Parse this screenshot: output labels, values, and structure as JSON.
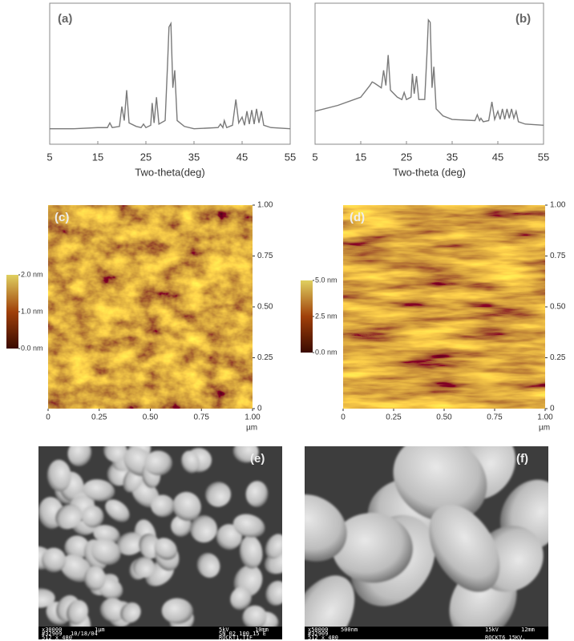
{
  "chart_data": [
    {
      "type": "line",
      "panel_label": "(a)",
      "x_label": "Two-theta(deg)",
      "x": [
        5,
        10,
        15,
        17,
        17.5,
        18,
        19.5,
        20,
        20.5,
        21,
        21.5,
        23,
        24,
        24.5,
        25,
        26,
        26.3,
        26.7,
        27.2,
        27.7,
        29,
        29.5,
        29.8,
        30.2,
        30.6,
        31,
        31.5,
        33,
        35,
        40,
        40.5,
        41,
        41.3,
        41.8,
        43,
        43.7,
        44.3,
        45,
        45.5,
        46,
        46.5,
        47,
        47.5,
        48,
        48.5,
        49,
        49.5,
        51,
        55
      ],
      "series": [
        {
          "color": "#7a7a7a",
          "values": [
            5,
            5,
            6,
            6,
            10,
            6,
            7,
            24,
            12,
            38,
            10,
            7,
            6,
            9,
            6,
            8,
            27,
            10,
            32,
            9,
            12,
            60,
            92,
            95,
            40,
            55,
            12,
            7,
            5,
            6,
            9,
            6,
            12,
            6,
            8,
            30,
            10,
            15,
            8,
            20,
            9,
            21,
            9,
            22,
            10,
            20,
            8,
            6,
            5
          ]
        }
      ],
      "xlim": [
        5,
        55
      ],
      "xticks": [
        5,
        15,
        25,
        35,
        45,
        55
      ],
      "ylim": [
        0,
        100
      ]
    },
    {
      "type": "line",
      "panel_label": "(b)",
      "x_label": "Two-theta (deg)",
      "x": [
        5,
        10,
        15,
        17,
        17.5,
        18,
        19.5,
        20,
        20.5,
        21,
        21.5,
        23,
        24,
        24.5,
        25,
        26,
        26.3,
        26.7,
        27.2,
        27.7,
        29,
        29.5,
        29.8,
        30.2,
        30.6,
        31,
        31.5,
        33,
        35,
        40,
        40.5,
        41,
        41.3,
        41.8,
        43,
        43.7,
        44.3,
        45,
        45.5,
        46,
        46.5,
        47,
        47.5,
        48,
        48.5,
        49,
        49.5,
        51,
        55
      ],
      "series": [
        {
          "color": "#7a7a7a",
          "values": [
            20,
            25,
            32,
            42,
            45,
            44,
            40,
            55,
            42,
            68,
            38,
            32,
            30,
            36,
            30,
            32,
            52,
            35,
            50,
            30,
            30,
            70,
            98,
            96,
            40,
            58,
            22,
            16,
            13,
            12,
            17,
            12,
            14,
            11,
            12,
            28,
            13,
            20,
            13,
            22,
            13,
            22,
            14,
            22,
            14,
            20,
            11,
            9,
            8
          ]
        }
      ],
      "xlim": [
        5,
        55
      ],
      "xticks": [
        5,
        15,
        25,
        35,
        45,
        55
      ],
      "ylim": [
        0,
        100
      ]
    }
  ],
  "afm_panels": [
    {
      "panel_label": "(c)",
      "unit": "µm",
      "lim": [
        0,
        1
      ],
      "ticks": [
        0,
        0.25,
        {
          "value": 0.5,
          "label": "0.50"
        },
        0.75,
        {
          "value": 1,
          "label": "1.00"
        }
      ],
      "colorbar": {
        "lim": [
          0,
          2
        ],
        "ticks": [
          {
            "value": 0,
            "label": "0.0 nm"
          },
          {
            "value": 1,
            "label": "1.0 nm"
          },
          {
            "value": 2,
            "label": "2.0 nm"
          }
        ]
      }
    },
    {
      "panel_label": "(d)",
      "unit": "µm",
      "lim": [
        0,
        1
      ],
      "ticks": [
        0,
        0.25,
        {
          "value": 0.5,
          "label": "0.50"
        },
        0.75,
        {
          "value": 1,
          "label": "1.00"
        }
      ],
      "colorbar": {
        "lim": [
          0,
          5
        ],
        "ticks": [
          {
            "value": 0,
            "label": "0.0 nm"
          },
          {
            "value": 2.5,
            "label": "2.5 nm"
          },
          {
            "value": 5,
            "label": "5.0 nm"
          }
        ]
      }
    }
  ],
  "sem_panels": [
    {
      "panel_label": "(e)",
      "info": [
        "x30000",
        "1µm",
        "5kV",
        "10mm",
        "#32909",
        "10/18/04",
        "SN 02 100 15 E",
        "512 x 480",
        "ROCKT1.TIF"
      ]
    },
    {
      "panel_label": "(f)",
      "info": [
        "x50000",
        "500nm",
        "15kV",
        "12mm",
        "#32909",
        "512 x 480",
        "ROCKT6 15KV."
      ]
    }
  ]
}
